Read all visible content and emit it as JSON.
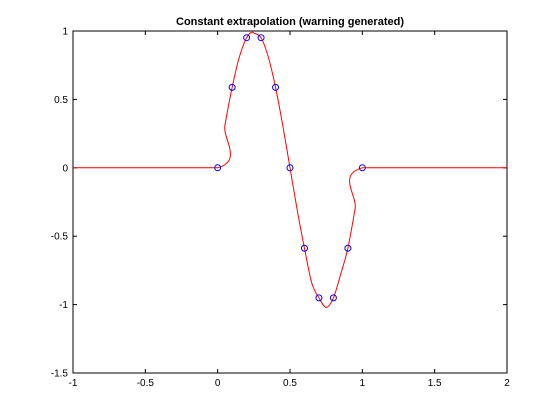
{
  "chart_data": {
    "type": "line",
    "title": "Constant extrapolation (warning generated)",
    "xlabel": "",
    "ylabel": "",
    "xlim": [
      -1,
      2
    ],
    "ylim": [
      -1.5,
      1
    ],
    "x_ticks": [
      -1,
      -0.5,
      0,
      0.5,
      1,
      1.5,
      2
    ],
    "x_tick_labels": [
      "-1",
      "-0.5",
      "0",
      "0.5",
      "1",
      "1.5",
      "2"
    ],
    "y_ticks": [
      -1.5,
      -1,
      -0.5,
      0,
      0.5,
      1
    ],
    "y_tick_labels": [
      "-1.5",
      "-1",
      "-0.5",
      "0",
      "0.5",
      "1"
    ],
    "grid": false,
    "legend": "none",
    "series": [
      {
        "style": "markers",
        "marker": "circle",
        "color": "#0000ff",
        "x": [
          0,
          0.1,
          0.2,
          0.3,
          0.4,
          0.5,
          0.6,
          0.7,
          0.8,
          0.9,
          1.0
        ],
        "y": [
          0,
          0.588,
          0.951,
          0.951,
          0.588,
          0,
          -0.588,
          -0.951,
          -0.951,
          -0.588,
          0
        ]
      },
      {
        "style": "line",
        "color": "#ff0000",
        "x": [
          -1,
          0,
          0.05,
          0.1,
          0.15,
          0.2,
          0.233,
          0.25,
          0.3,
          0.35,
          0.4,
          0.45,
          0.5,
          0.55,
          0.6,
          0.65,
          0.7,
          0.75,
          0.8,
          0.85,
          0.9,
          0.95,
          1.0,
          2.0
        ],
        "y": [
          0,
          0,
          0.31,
          0.588,
          0.81,
          0.951,
          0.99,
          0.985,
          0.951,
          0.81,
          0.588,
          0.31,
          0,
          -0.31,
          -0.588,
          -0.84,
          -0.951,
          -1.02,
          -0.951,
          -0.78,
          -0.588,
          -0.3,
          0,
          0
        ]
      }
    ]
  }
}
